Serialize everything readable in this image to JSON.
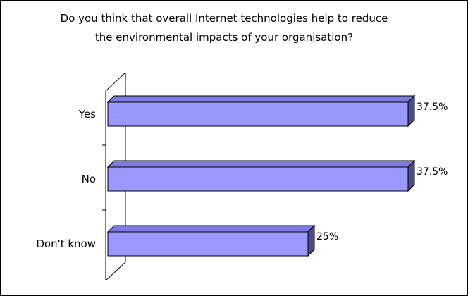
{
  "chart_data": {
    "type": "bar",
    "orientation": "horizontal",
    "style": "3d",
    "title": [
      "Do you think that overall Internet technologies help to reduce",
      "the environmental impacts of your organisation?"
    ],
    "categories": [
      "Yes",
      "No",
      "Don't know"
    ],
    "values": [
      37.5,
      37.5,
      25
    ],
    "value_labels": [
      "37.5%",
      "37.5%",
      "25%"
    ],
    "unit": "%",
    "xlim": [
      0,
      40
    ],
    "grid": false,
    "legend": "none",
    "colors": {
      "bar_face": "#9999ff",
      "bar_top": "#7b7be0",
      "bar_side": "#4c4c8c",
      "outline": "#000000"
    }
  }
}
